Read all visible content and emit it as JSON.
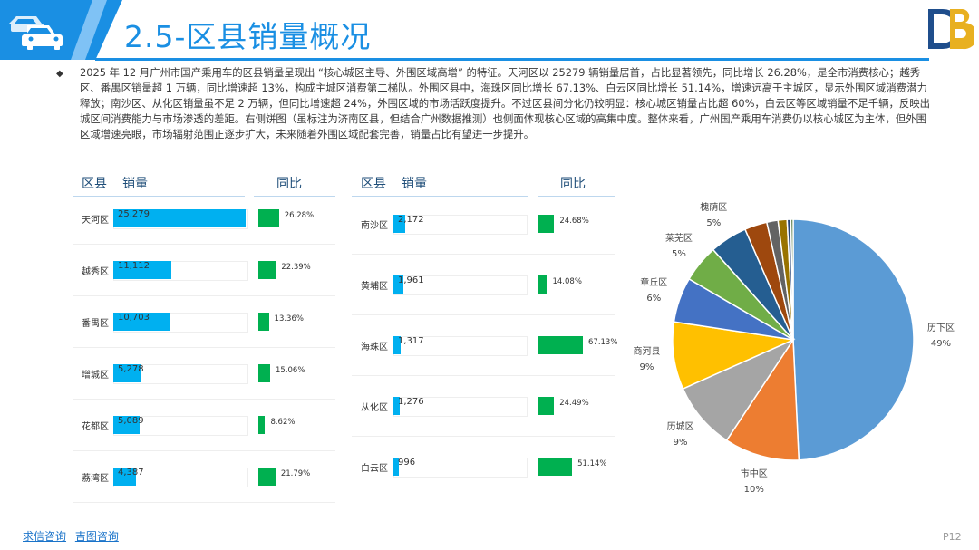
{
  "header": {
    "title": "2.5-区县销量概况"
  },
  "summary": "2025 年 12 月广州市国产乘用车的区县销量呈现出 “核心城区主导、外围区域高增” 的特征。天河区以 25279 辆销量居首，占比显著领先，同比增长 26.28%，是全市消费核心；越秀区、番禺区销量超 1 万辆，同比增速超 13%，构成主城区消费第二梯队。外围区县中，海珠区同比增长 67.13%、白云区同比增长 51.14%，增速远高于主城区，显示外围区域消费潜力释放；南沙区、从化区销量虽不足 2 万辆，但同比增速超 24%，外围区域的市场活跃度提升。不过区县间分化仍较明显：核心城区销量占比超 60%，白云区等区域销量不足千辆，反映出城区间消费能力与市场渗透的差距。右侧饼图（虽标注为济南区县，但结合广州数据推测）也侧面体现核心区域的高集中度。整体来看，广州国产乘用车消费仍以核心城区为主体，但外围区域增速亮眼，市场辐射范围正逐步扩大，未来随着外围区域配套完善，销量占比有望进一步提升。",
  "table_headers": {
    "district": "区县",
    "sales": "销量",
    "yoy": "同比"
  },
  "chart_data": [
    {
      "type": "bar",
      "series": [
        {
          "name": "销量",
          "values": [
            25279,
            11112,
            10703,
            5278,
            5089,
            4387
          ]
        },
        {
          "name": "同比",
          "values": [
            26.28,
            22.39,
            13.36,
            15.06,
            8.62,
            21.79
          ]
        }
      ],
      "categories": [
        "天河区",
        "越秀区",
        "番禺区",
        "增城区",
        "花都区",
        "荔湾区"
      ],
      "sales_labels": [
        "25,279",
        "11,112",
        "10,703",
        "5,278",
        "5,089",
        "4,387"
      ],
      "yoy_labels": [
        "26.28%",
        "22.39%",
        "13.36%",
        "15.06%",
        "8.62%",
        "21.79%"
      ],
      "sales_max": 25279,
      "yoy_max": 67.13
    },
    {
      "type": "bar",
      "series": [
        {
          "name": "销量",
          "values": [
            2172,
            1961,
            1317,
            1276,
            996
          ]
        },
        {
          "name": "同比",
          "values": [
            24.68,
            14.08,
            67.13,
            24.49,
            51.14
          ]
        }
      ],
      "categories": [
        "南沙区",
        "黄埔区",
        "海珠区",
        "从化区",
        "白云区"
      ],
      "sales_labels": [
        "2,172",
        "1,961",
        "1,317",
        "1,276",
        "996"
      ],
      "yoy_labels": [
        "24.68%",
        "14.08%",
        "67.13%",
        "24.49%",
        "51.14%"
      ],
      "sales_max": 25279,
      "yoy_max": 67.13
    },
    {
      "type": "pie",
      "slices": [
        {
          "label": "历下区",
          "value": 49,
          "pct_label": "49%",
          "color": "#5b9bd5",
          "show_label": true
        },
        {
          "label": "市中区",
          "value": 10,
          "pct_label": "10%",
          "color": "#ed7d31",
          "show_label": true
        },
        {
          "label": "历城区",
          "value": 9,
          "pct_label": "9%",
          "color": "#a5a5a5",
          "show_label": true
        },
        {
          "label": "商河县",
          "value": 9,
          "pct_label": "9%",
          "color": "#ffc000",
          "show_label": true
        },
        {
          "label": "章丘区",
          "value": 6,
          "pct_label": "6%",
          "color": "#4472c4",
          "show_label": true
        },
        {
          "label": "莱芜区",
          "value": 5,
          "pct_label": "5%",
          "color": "#70ad47",
          "show_label": true
        },
        {
          "label": "槐荫区",
          "value": 5,
          "pct_label": "5%",
          "color": "#255e91",
          "show_label": true
        },
        {
          "label": "",
          "value": 3,
          "pct_label": "",
          "color": "#9e480e",
          "show_label": false
        },
        {
          "label": "",
          "value": 1.5,
          "pct_label": "",
          "color": "#636363",
          "show_label": false
        },
        {
          "label": "",
          "value": 1.2,
          "pct_label": "",
          "color": "#997300",
          "show_label": false
        },
        {
          "label": "",
          "value": 0.5,
          "pct_label": "",
          "color": "#264478",
          "show_label": false
        },
        {
          "label": "",
          "value": 0.3,
          "pct_label": "",
          "color": "#43682b",
          "show_label": false
        }
      ]
    }
  ],
  "footer": {
    "link1": "求信咨询",
    "link2": "吉图咨询",
    "page": "P12"
  },
  "colors": {
    "accent": "#1a8fe3",
    "sales_bar": "#00b0f0",
    "yoy_bar": "#00b050"
  },
  "icons": {
    "header": "car-icon",
    "logo": "brand-logo-icon"
  }
}
